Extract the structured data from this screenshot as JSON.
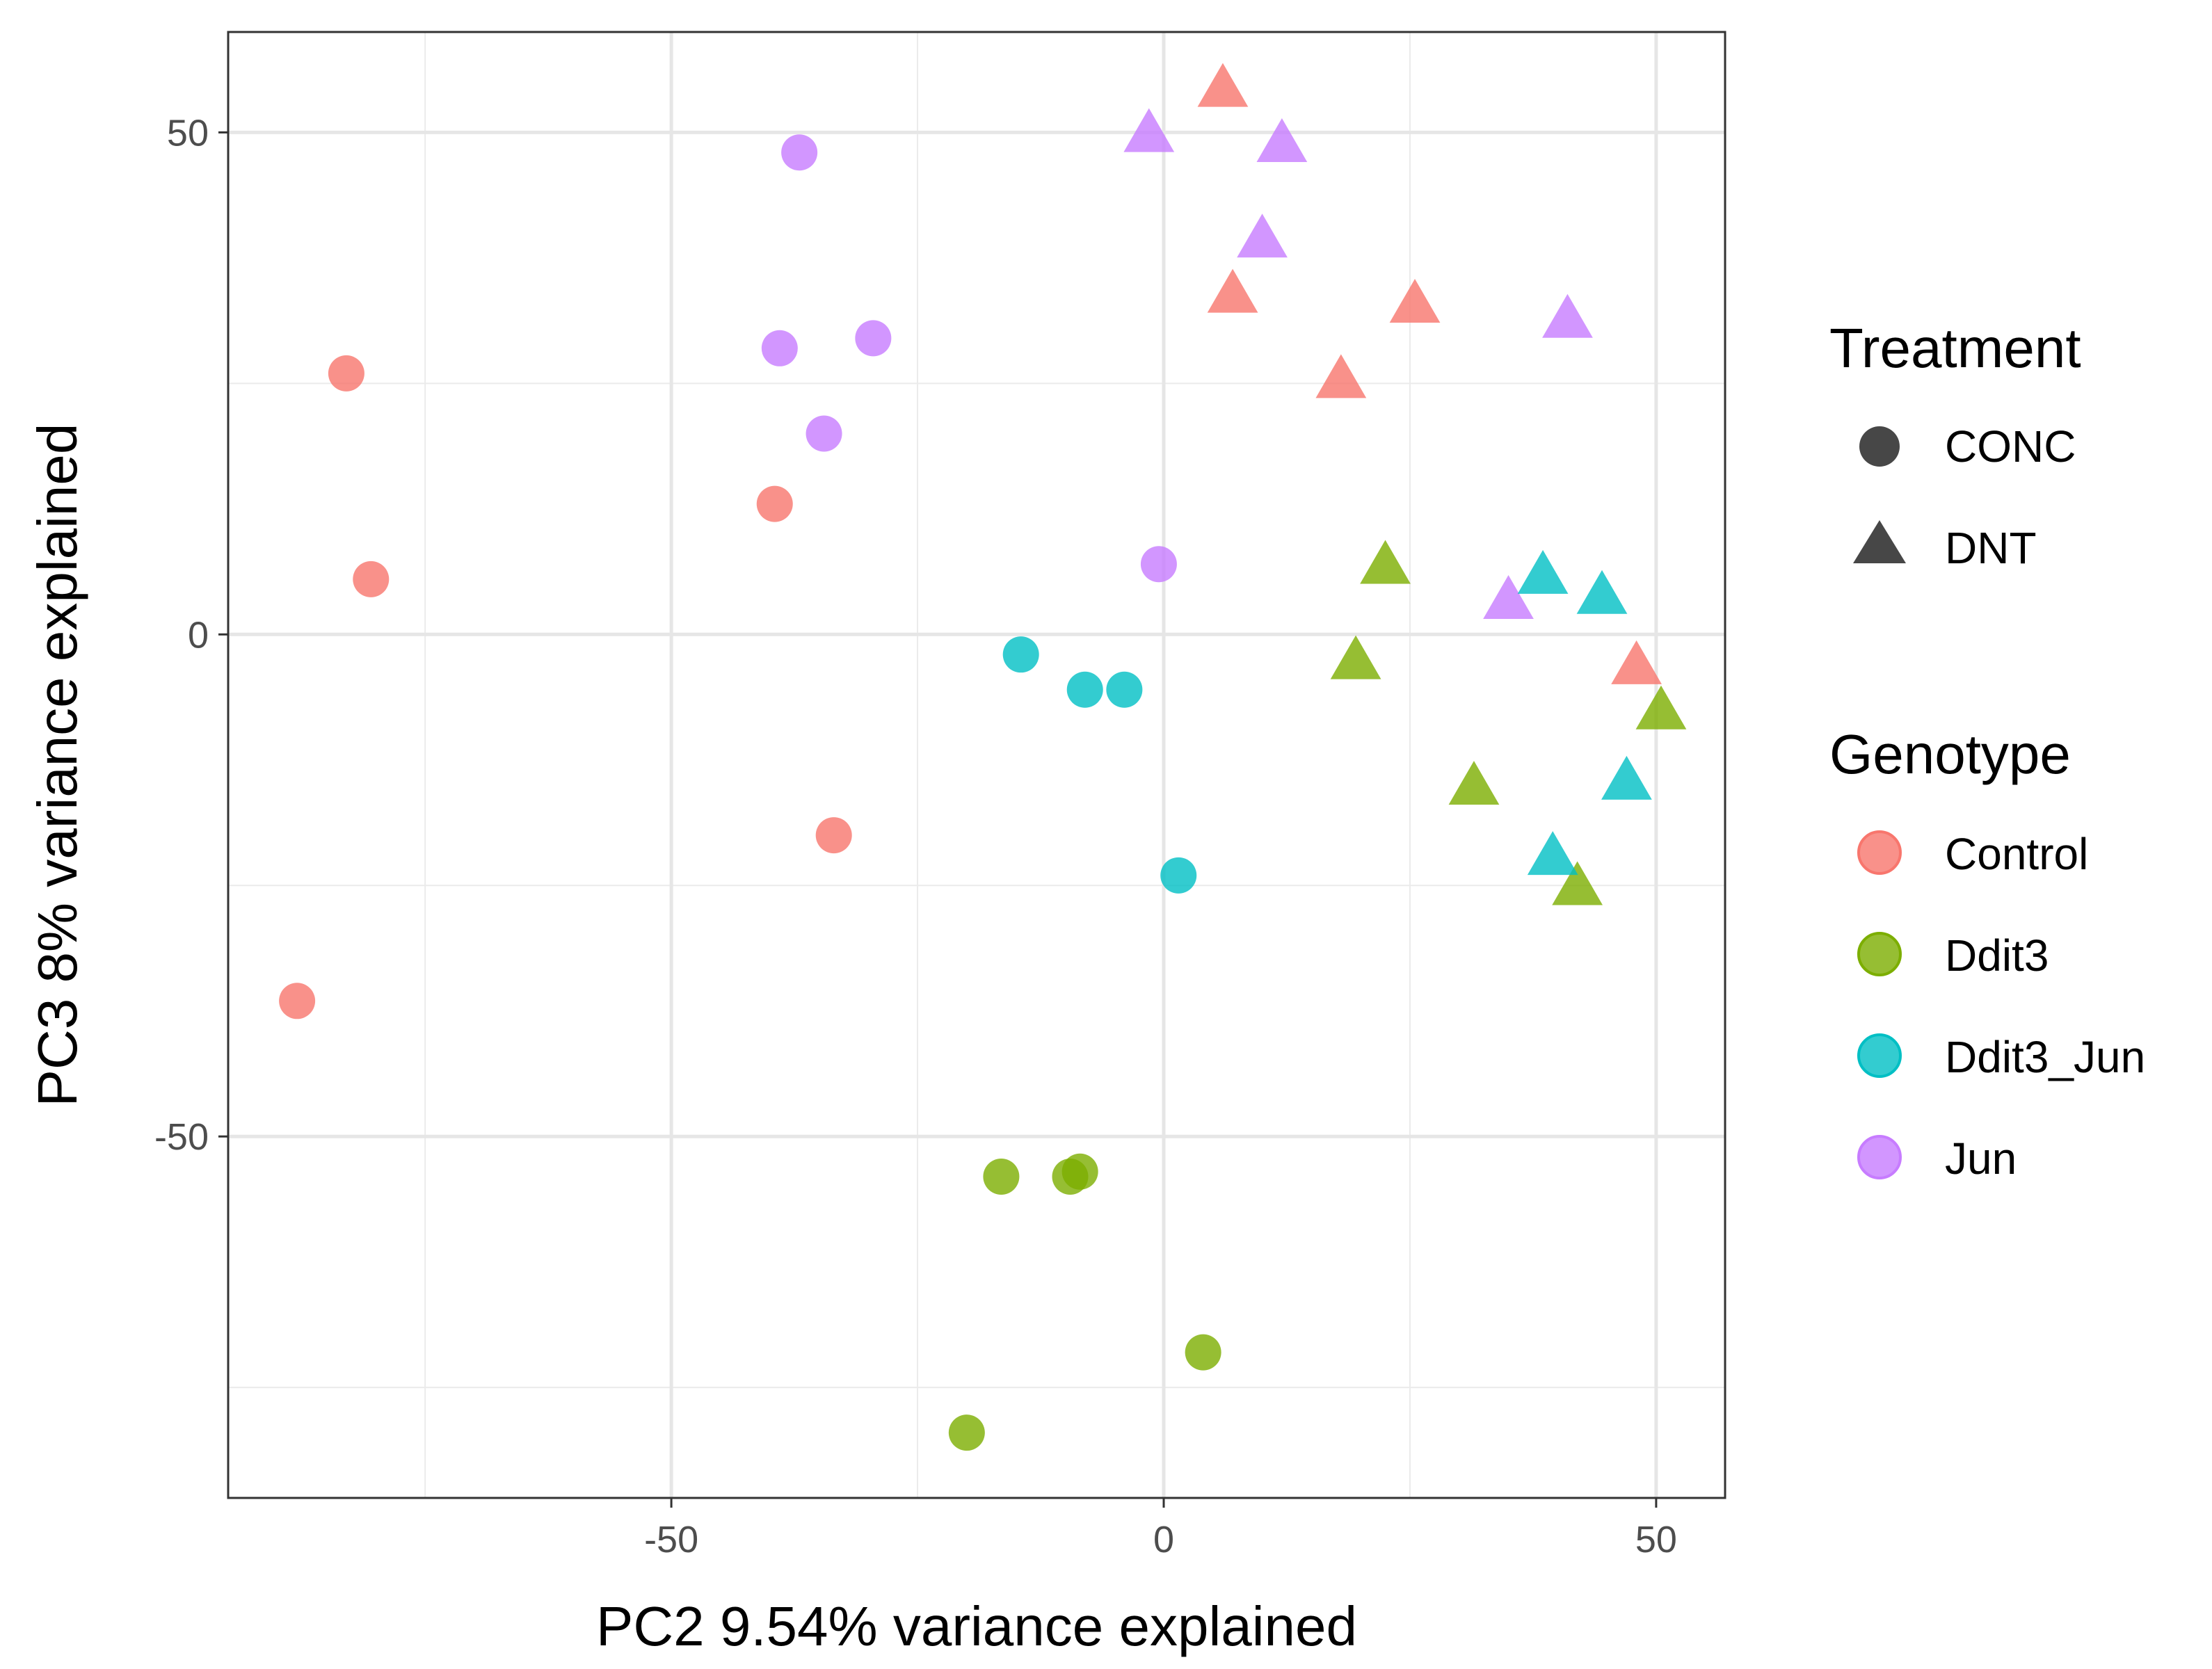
{
  "chart_data": {
    "type": "scatter",
    "xlabel": "PC2 9.54% variance explained",
    "ylabel": "PC3 8% variance explained",
    "xlim": [
      -95,
      57
    ],
    "ylim": [
      -86,
      60
    ],
    "x_ticks": [
      {
        "value": -50,
        "label": "-50"
      },
      {
        "value": 0,
        "label": "0"
      },
      {
        "value": 50,
        "label": "50"
      }
    ],
    "y_ticks": [
      {
        "value": 50,
        "label": "50"
      },
      {
        "value": 0,
        "label": "0"
      },
      {
        "value": -50,
        "label": "-50"
      }
    ],
    "x_minor": [
      -75,
      -25,
      25
    ],
    "y_minor": [
      25,
      -25,
      -75
    ],
    "grid": true,
    "legend_placement": "right",
    "legends": {
      "shape": {
        "title": "Treatment",
        "entries": [
          {
            "label": "CONC",
            "shape": "circle"
          },
          {
            "label": "DNT",
            "shape": "triangle"
          }
        ]
      },
      "color": {
        "title": "Genotype",
        "entries": [
          {
            "label": "Control",
            "color": "#F8766D"
          },
          {
            "label": "Ddit3",
            "color": "#7CAE00"
          },
          {
            "label": "Ddit3_Jun",
            "color": "#00BFC4"
          },
          {
            "label": "Jun",
            "color": "#C77CFF"
          }
        ]
      }
    },
    "points": [
      {
        "x": -83.0,
        "y": 26.0,
        "genotype": "Control",
        "treatment": "CONC"
      },
      {
        "x": -80.5,
        "y": 5.5,
        "genotype": "Control",
        "treatment": "CONC"
      },
      {
        "x": -39.5,
        "y": 13.0,
        "genotype": "Control",
        "treatment": "CONC"
      },
      {
        "x": -33.5,
        "y": -20.0,
        "genotype": "Control",
        "treatment": "CONC"
      },
      {
        "x": -88.0,
        "y": -36.5,
        "genotype": "Control",
        "treatment": "CONC"
      },
      {
        "x": -37.0,
        "y": 48.0,
        "genotype": "Jun",
        "treatment": "CONC"
      },
      {
        "x": -39.0,
        "y": 28.5,
        "genotype": "Jun",
        "treatment": "CONC"
      },
      {
        "x": -29.5,
        "y": 29.5,
        "genotype": "Jun",
        "treatment": "CONC"
      },
      {
        "x": -34.5,
        "y": 20.0,
        "genotype": "Jun",
        "treatment": "CONC"
      },
      {
        "x": -0.5,
        "y": 7.0,
        "genotype": "Jun",
        "treatment": "CONC"
      },
      {
        "x": -14.5,
        "y": -2.0,
        "genotype": "Ddit3_Jun",
        "treatment": "CONC"
      },
      {
        "x": -8.0,
        "y": -5.5,
        "genotype": "Ddit3_Jun",
        "treatment": "CONC"
      },
      {
        "x": -4.0,
        "y": -5.5,
        "genotype": "Ddit3_Jun",
        "treatment": "CONC"
      },
      {
        "x": 1.5,
        "y": -24.0,
        "genotype": "Ddit3_Jun",
        "treatment": "CONC"
      },
      {
        "x": -16.5,
        "y": -54.0,
        "genotype": "Ddit3",
        "treatment": "CONC"
      },
      {
        "x": -9.5,
        "y": -54.0,
        "genotype": "Ddit3",
        "treatment": "CONC"
      },
      {
        "x": -8.5,
        "y": -53.5,
        "genotype": "Ddit3",
        "treatment": "CONC"
      },
      {
        "x": 4.0,
        "y": -71.5,
        "genotype": "Ddit3",
        "treatment": "CONC"
      },
      {
        "x": -20.0,
        "y": -79.5,
        "genotype": "Ddit3",
        "treatment": "CONC"
      },
      {
        "x": 6.0,
        "y": 54.0,
        "genotype": "Control",
        "treatment": "DNT"
      },
      {
        "x": 7.0,
        "y": 33.5,
        "genotype": "Control",
        "treatment": "DNT"
      },
      {
        "x": 25.5,
        "y": 32.5,
        "genotype": "Control",
        "treatment": "DNT"
      },
      {
        "x": 18.0,
        "y": 25.0,
        "genotype": "Control",
        "treatment": "DNT"
      },
      {
        "x": 48.0,
        "y": -3.5,
        "genotype": "Control",
        "treatment": "DNT"
      },
      {
        "x": -1.5,
        "y": 49.5,
        "genotype": "Jun",
        "treatment": "DNT"
      },
      {
        "x": 12.0,
        "y": 48.5,
        "genotype": "Jun",
        "treatment": "DNT"
      },
      {
        "x": 10.0,
        "y": 39.0,
        "genotype": "Jun",
        "treatment": "DNT"
      },
      {
        "x": 41.0,
        "y": 31.0,
        "genotype": "Jun",
        "treatment": "DNT"
      },
      {
        "x": 35.0,
        "y": 3.0,
        "genotype": "Jun",
        "treatment": "DNT"
      },
      {
        "x": 22.5,
        "y": 6.5,
        "genotype": "Ddit3",
        "treatment": "DNT"
      },
      {
        "x": 19.5,
        "y": -3.0,
        "genotype": "Ddit3",
        "treatment": "DNT"
      },
      {
        "x": 50.5,
        "y": -8.0,
        "genotype": "Ddit3",
        "treatment": "DNT"
      },
      {
        "x": 31.5,
        "y": -15.5,
        "genotype": "Ddit3",
        "treatment": "DNT"
      },
      {
        "x": 42.0,
        "y": -25.5,
        "genotype": "Ddit3",
        "treatment": "DNT"
      },
      {
        "x": 38.5,
        "y": 5.5,
        "genotype": "Ddit3_Jun",
        "treatment": "DNT"
      },
      {
        "x": 44.5,
        "y": 3.5,
        "genotype": "Ddit3_Jun",
        "treatment": "DNT"
      },
      {
        "x": 47.0,
        "y": -15.0,
        "genotype": "Ddit3_Jun",
        "treatment": "DNT"
      },
      {
        "x": 39.5,
        "y": -22.5,
        "genotype": "Ddit3_Jun",
        "treatment": "DNT"
      }
    ]
  }
}
